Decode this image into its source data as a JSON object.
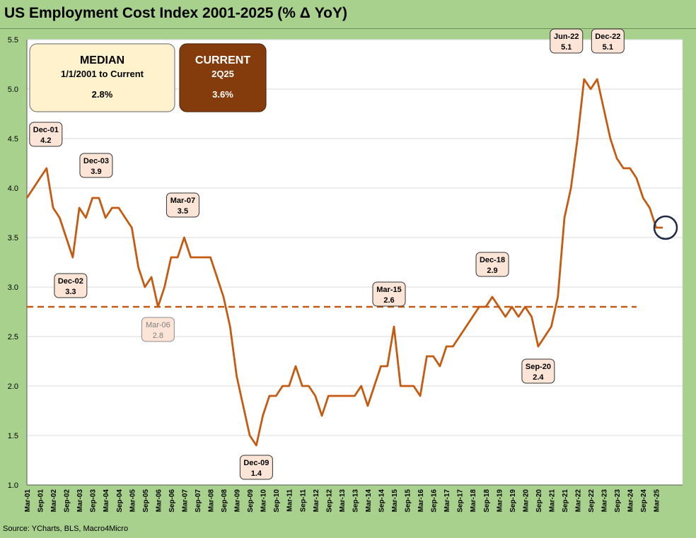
{
  "chart_data": {
    "type": "line",
    "title": "US Employment Cost Index 2001-2025 (% Δ YoY)",
    "source": "Source: YCharts, BLS, Macro4Micro",
    "ylim": [
      1.0,
      5.5
    ],
    "yticks": [
      "1.0",
      "1.5",
      "2.0",
      "2.5",
      "3.0",
      "3.5",
      "4.0",
      "4.5",
      "5.0",
      "5.5"
    ],
    "ytick_values": [
      1.0,
      1.5,
      2.0,
      2.5,
      3.0,
      3.5,
      4.0,
      4.5,
      5.0,
      5.5
    ],
    "xtick_labels": [
      "Mar-01",
      "Sep-01",
      "Mar-02",
      "Sep-02",
      "Mar-03",
      "Sep-03",
      "Mar-04",
      "Sep-04",
      "Mar-05",
      "Sep-05",
      "Mar-06",
      "Sep-06",
      "Mar-07",
      "Sep-07",
      "Mar-08",
      "Sep-08",
      "Mar-09",
      "Sep-09",
      "Mar-10",
      "Sep-10",
      "Mar-11",
      "Sep-11",
      "Mar-12",
      "Sep-12",
      "Mar-13",
      "Sep-13",
      "Mar-14",
      "Sep-14",
      "Mar-15",
      "Sep-15",
      "Mar-16",
      "Sep-16",
      "Mar-17",
      "Sep-17",
      "Mar-18",
      "Sep-18",
      "Mar-19",
      "Sep-19",
      "Mar-20",
      "Sep-20",
      "Mar-21",
      "Sep-21",
      "Mar-22",
      "Sep-22",
      "Mar-23",
      "Sep-23",
      "Mar-24",
      "Sep-24",
      "Mar-25"
    ],
    "series": [
      {
        "name": "ECI % YoY",
        "color": "#c55a11",
        "start_quarter": "1Q01",
        "values": [
          3.9,
          4.0,
          4.1,
          4.2,
          3.8,
          3.7,
          3.5,
          3.3,
          3.8,
          3.7,
          3.9,
          3.9,
          3.7,
          3.8,
          3.8,
          3.7,
          3.6,
          3.2,
          3.0,
          3.1,
          2.8,
          3.0,
          3.3,
          3.3,
          3.5,
          3.3,
          3.3,
          3.3,
          3.3,
          3.1,
          2.9,
          2.6,
          2.1,
          1.8,
          1.5,
          1.4,
          1.7,
          1.9,
          1.9,
          2.0,
          2.0,
          2.2,
          2.0,
          2.0,
          1.9,
          1.7,
          1.9,
          1.9,
          1.9,
          1.9,
          1.9,
          2.0,
          1.8,
          2.0,
          2.2,
          2.2,
          2.6,
          2.0,
          2.0,
          2.0,
          1.9,
          2.3,
          2.3,
          2.2,
          2.4,
          2.4,
          2.5,
          2.6,
          2.7,
          2.8,
          2.8,
          2.9,
          2.8,
          2.7,
          2.8,
          2.7,
          2.8,
          2.7,
          2.4,
          2.5,
          2.6,
          2.9,
          3.7,
          4.0,
          4.5,
          5.1,
          5.0,
          5.1,
          4.8,
          4.5,
          4.3,
          4.2,
          4.2,
          4.1,
          3.9,
          3.8,
          3.6,
          3.6
        ]
      }
    ],
    "median": {
      "value": 2.8,
      "color": "#c55a11",
      "style": "dashed"
    },
    "annotations": [
      {
        "label": "Dec-01",
        "value": "4.2",
        "index": 3,
        "style": "normal"
      },
      {
        "label": "Dec-02",
        "value": "3.3",
        "index": 7,
        "style": "normal"
      },
      {
        "label": "Dec-03",
        "value": "3.9",
        "index": 11,
        "style": "normal"
      },
      {
        "label": "Mar-06",
        "value": "2.8",
        "index": 20,
        "style": "muted"
      },
      {
        "label": "Mar-07",
        "value": "3.5",
        "index": 24,
        "style": "normal"
      },
      {
        "label": "Dec-09",
        "value": "1.4",
        "index": 35,
        "style": "normal"
      },
      {
        "label": "Mar-15",
        "value": "2.6",
        "index": 56,
        "style": "normal"
      },
      {
        "label": "Dec-18",
        "value": "2.9",
        "index": 71,
        "style": "normal"
      },
      {
        "label": "Sep-20",
        "value": "2.4",
        "index": 78,
        "style": "normal"
      },
      {
        "label": "Jun-22",
        "value": "5.1",
        "index": 85,
        "style": "normal"
      },
      {
        "label": "Dec-22",
        "value": "5.1",
        "index": 87,
        "style": "normal"
      }
    ],
    "median_box": {
      "title": "MEDIAN",
      "subtitle": "1/1/2001 to Current",
      "value": "2.8%"
    },
    "current_box": {
      "title": "CURRENT",
      "subtitle": "2Q25",
      "value": "3.6%"
    },
    "current_marker_index": 97
  }
}
